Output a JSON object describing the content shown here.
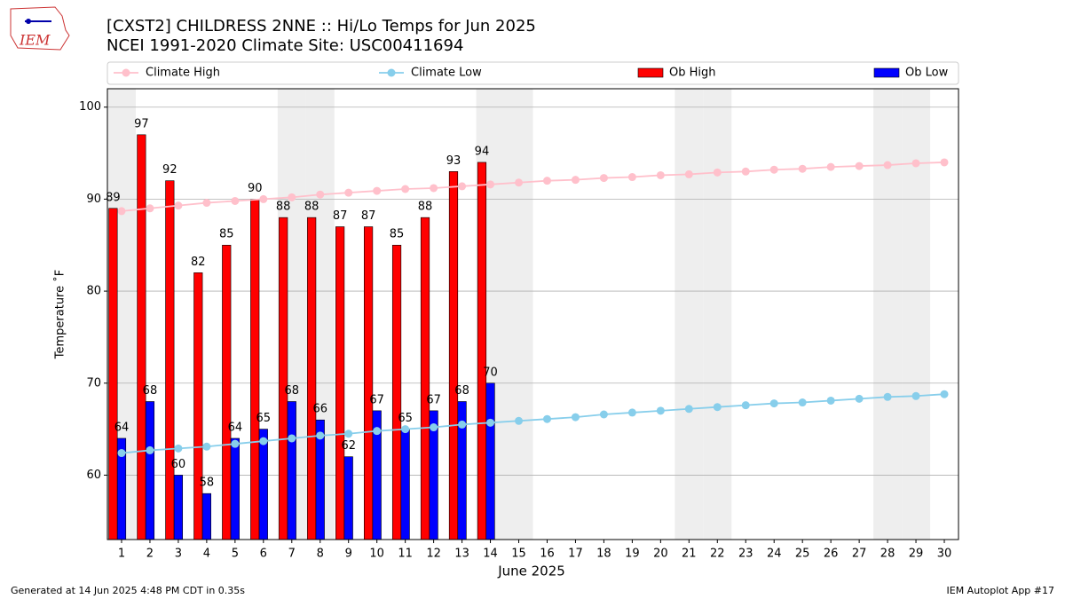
{
  "logo_text": "IEM",
  "footer_left": "Generated at 14 Jun 2025 4:48 PM CDT in 0.35s",
  "footer_right": "IEM Autoplot App #17",
  "chart_data": {
    "type": "bar",
    "title": "[CXST2] CHILDRESS 2NNE :: Hi/Lo Temps for Jun 2025",
    "subtitle": "NCEI 1991-2020 Climate Site: USC00411694",
    "x_label": "June 2025",
    "y_label": "Temperature ˚F",
    "x": [
      1,
      2,
      3,
      4,
      5,
      6,
      7,
      8,
      9,
      10,
      11,
      12,
      13,
      14,
      15,
      16,
      17,
      18,
      19,
      20,
      21,
      22,
      23,
      24,
      25,
      26,
      27,
      28,
      29,
      30
    ],
    "xlim": [
      0.5,
      30.5
    ],
    "xticks": [
      1,
      2,
      3,
      4,
      5,
      6,
      7,
      8,
      9,
      10,
      11,
      12,
      13,
      14,
      15,
      16,
      17,
      18,
      19,
      20,
      21,
      22,
      23,
      24,
      25,
      26,
      27,
      28,
      29,
      30
    ],
    "ylim": [
      53,
      102
    ],
    "yticks": [
      60,
      70,
      80,
      90,
      100
    ],
    "grid": true,
    "shaded_days": [
      1,
      7,
      8,
      14,
      15,
      21,
      22,
      28,
      29
    ],
    "shade_color": "#eeeeee",
    "legend": "top",
    "series": [
      {
        "name": "Climate High",
        "type": "line",
        "color": "#ffc0cb",
        "values": [
          88.7,
          89.0,
          89.3,
          89.6,
          89.8,
          90.0,
          90.2,
          90.5,
          90.7,
          90.9,
          91.1,
          91.2,
          91.4,
          91.6,
          91.8,
          92.0,
          92.1,
          92.3,
          92.4,
          92.6,
          92.7,
          92.9,
          93.0,
          93.2,
          93.3,
          93.5,
          93.6,
          93.7,
          93.9,
          94.0
        ]
      },
      {
        "name": "Climate Low",
        "type": "line",
        "color": "#87ceeb",
        "values": [
          62.4,
          62.7,
          62.9,
          63.1,
          63.4,
          63.7,
          64.0,
          64.3,
          64.5,
          64.8,
          65.0,
          65.2,
          65.5,
          65.7,
          65.9,
          66.1,
          66.3,
          66.6,
          66.8,
          67.0,
          67.2,
          67.4,
          67.6,
          67.8,
          67.9,
          68.1,
          68.3,
          68.5,
          68.6,
          68.8
        ]
      },
      {
        "name": "Ob High",
        "type": "bar",
        "color": "#ff0000",
        "values": [
          89,
          97,
          92,
          82,
          85,
          90,
          88,
          88,
          87,
          87,
          85,
          88,
          93,
          94,
          null,
          null,
          null,
          null,
          null,
          null,
          null,
          null,
          null,
          null,
          null,
          null,
          null,
          null,
          null,
          null
        ]
      },
      {
        "name": "Ob Low",
        "type": "bar",
        "color": "#0000ff",
        "values": [
          64,
          68,
          60,
          58,
          64,
          65,
          68,
          66,
          62,
          67,
          65,
          67,
          68,
          70,
          null,
          null,
          null,
          null,
          null,
          null,
          null,
          null,
          null,
          null,
          null,
          null,
          null,
          null,
          null,
          null
        ]
      }
    ]
  }
}
